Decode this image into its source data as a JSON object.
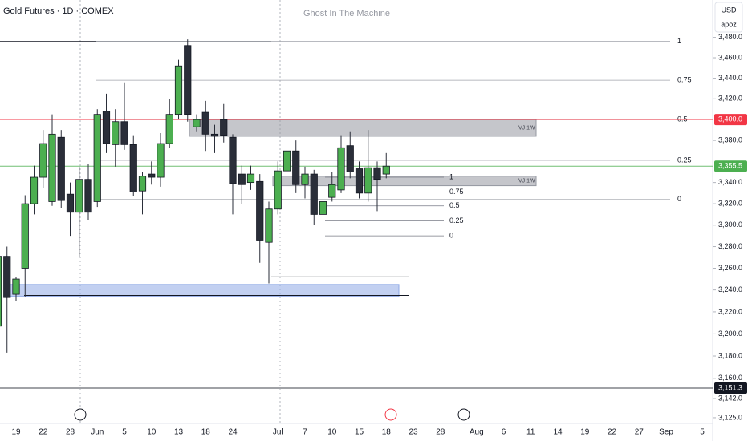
{
  "chart_data": {
    "type": "candlestick",
    "title": "Gold Futures · 1D · COMEX",
    "watermark": "Ghost In The Machine",
    "currency": "USD",
    "user": "apoz",
    "log_scale": true,
    "up_color": "#4caf50",
    "down_color": "#2a2e39",
    "categories": [
      null,
      null,
      "19",
      null,
      null,
      "22",
      null,
      null,
      "28",
      null,
      null,
      "Jun",
      null,
      null,
      "5",
      null,
      null,
      "10",
      null,
      null,
      "13",
      null,
      null,
      "18",
      null,
      null,
      "24",
      null,
      null,
      null,
      null,
      "Jul",
      null,
      null,
      "7",
      null,
      null,
      "10",
      null,
      null,
      "15",
      null,
      null,
      "18",
      null,
      null,
      "23",
      null,
      null,
      "28",
      null,
      null,
      null,
      "Aug",
      null,
      null,
      "6",
      null,
      null,
      "11",
      null,
      null,
      "14",
      null,
      null,
      "19",
      null,
      null,
      "22",
      null,
      null,
      "27",
      null,
      null,
      "Sep",
      null,
      null,
      null,
      "5"
    ],
    "open": [
      3207,
      3271,
      3236,
      3260,
      3320,
      3345,
      3322,
      3383,
      3329,
      3312,
      3343,
      3322,
      3408,
      3376,
      3398,
      3376,
      3332,
      3348,
      3345,
      3377,
      3405,
      3472,
      3393,
      3407,
      3386,
      3400,
      3383,
      3348,
      3340,
      3341,
      3284,
      3315,
      3351,
      3370,
      3338,
      3348,
      3310,
      3326,
      3333,
      3375,
      3353,
      3330,
      3354,
      3348,
      null,
      null,
      null,
      null,
      null,
      null,
      null,
      null,
      null,
      null,
      null,
      null,
      null,
      null,
      null,
      null,
      null,
      null,
      null,
      null,
      null,
      null,
      null,
      null,
      null,
      null,
      null,
      null,
      null,
      null,
      null,
      null,
      null,
      null,
      null
    ],
    "high": [
      3275,
      3280,
      3252,
      3328,
      3356,
      3390,
      3405,
      3390,
      3340,
      3355,
      3358,
      3410,
      3425,
      3410,
      3436,
      3385,
      3350,
      3360,
      3387,
      3420,
      3458,
      3478,
      3405,
      3418,
      3395,
      3415,
      3386,
      3356,
      3356,
      3348,
      3322,
      3360,
      3378,
      3380,
      3355,
      3352,
      3328,
      3350,
      3385,
      3388,
      3360,
      3390,
      3360,
      3368,
      null,
      null,
      null,
      null,
      null,
      null,
      null,
      null,
      null,
      null,
      null,
      null,
      null,
      null,
      null,
      null,
      null,
      null,
      null,
      null,
      null,
      null,
      null,
      null,
      null,
      null,
      null,
      null,
      null,
      null,
      null,
      null,
      null,
      null,
      null
    ],
    "low": [
      3200,
      3183,
      3230,
      3234,
      3310,
      3335,
      3318,
      3316,
      3290,
      3270,
      3305,
      3317,
      3368,
      3355,
      3371,
      3327,
      3310,
      3338,
      3336,
      3373,
      3400,
      3398,
      3388,
      3370,
      3368,
      3378,
      3310,
      3320,
      3333,
      3265,
      3246,
      3310,
      3343,
      3330,
      3325,
      3300,
      3295,
      3322,
      3330,
      3344,
      3325,
      3322,
      3313,
      3344,
      null,
      null,
      null,
      null,
      null,
      null,
      null,
      null,
      null,
      null,
      null,
      null,
      null,
      null,
      null,
      null,
      null,
      null,
      null,
      null,
      null,
      null,
      null,
      null,
      null,
      null,
      null,
      null,
      null,
      null,
      null,
      null,
      null,
      null,
      null
    ],
    "close": [
      3271,
      3233,
      3250,
      3320,
      3345,
      3377,
      3386,
      3323,
      3312,
      3343,
      3312,
      3405,
      3377,
      3398,
      3376,
      3331,
      3346,
      3345,
      3377,
      3405,
      3452,
      3405,
      3400,
      3386,
      3384,
      3385,
      3339,
      3338,
      3348,
      3286,
      3315,
      3351,
      3370,
      3338,
      3348,
      3310,
      3322,
      3338,
      3373,
      3350,
      3330,
      3354,
      3343,
      3355.5,
      null,
      null,
      null,
      null,
      null,
      null,
      null,
      null,
      null,
      null,
      null,
      null,
      null,
      null,
      null,
      null,
      null,
      null,
      null,
      null,
      null,
      null,
      null,
      null,
      null,
      null,
      null,
      null,
      null,
      null,
      null,
      null,
      null,
      null,
      null
    ],
    "ylim": [
      3120,
      3517
    ],
    "yticks": [
      {
        "value": 3480,
        "label": "3,480.0"
      },
      {
        "value": 3460,
        "label": "3,460.0"
      },
      {
        "value": 3440,
        "label": "3,440.0"
      },
      {
        "value": 3420,
        "label": "3,420.0"
      },
      {
        "value": 3380,
        "label": "3,380.0"
      },
      {
        "value": 3340,
        "label": "3,340.0"
      },
      {
        "value": 3320,
        "label": "3,320.0"
      },
      {
        "value": 3300,
        "label": "3,300.0"
      },
      {
        "value": 3280,
        "label": "3,280.0"
      },
      {
        "value": 3260,
        "label": "3,260.0"
      },
      {
        "value": 3240,
        "label": "3,240.0"
      },
      {
        "value": 3220,
        "label": "3,220.0"
      },
      {
        "value": 3200,
        "label": "3,200.0"
      },
      {
        "value": 3180,
        "label": "3,180.0"
      },
      {
        "value": 3160,
        "label": "3,160.0"
      },
      {
        "value": 3142,
        "label": "3,142.0"
      },
      {
        "value": 3125,
        "label": "3,125.0"
      }
    ],
    "fib_levels": [
      {
        "label": "1",
        "value": 3476
      },
      {
        "label": "0.75",
        "value": 3438
      },
      {
        "label": "0.5",
        "value": 3400
      },
      {
        "label": "0.25",
        "value": 3361
      },
      {
        "label": "0",
        "value": 3324
      }
    ],
    "fib_levels_small": [
      {
        "label": "1",
        "value": 3345
      },
      {
        "label": "0.75",
        "value": 3331
      },
      {
        "label": "0.5",
        "value": 3318
      },
      {
        "label": "0.25",
        "value": 3304
      },
      {
        "label": "0",
        "value": 3290
      }
    ],
    "zones": [
      {
        "label": "VJ 1W",
        "low": 3384,
        "high": 3400,
        "color": "#9598a1"
      },
      {
        "label": "VJ 1W",
        "low": 3337,
        "high": 3346,
        "color": "#9598a1"
      },
      {
        "low": 3234,
        "high": 3245,
        "color": "#8fa9e6"
      }
    ],
    "horizontal_lines": [
      3476,
      3252,
      3235
    ],
    "price_labels": [
      {
        "value": 3400,
        "label": "3,400.0",
        "color": "#f23645"
      },
      {
        "value": 3355.5,
        "label": "3,355.5",
        "color": "#4caf50"
      },
      {
        "value": 3151.3,
        "label": "3,151.3",
        "color": "#131722"
      }
    ]
  }
}
